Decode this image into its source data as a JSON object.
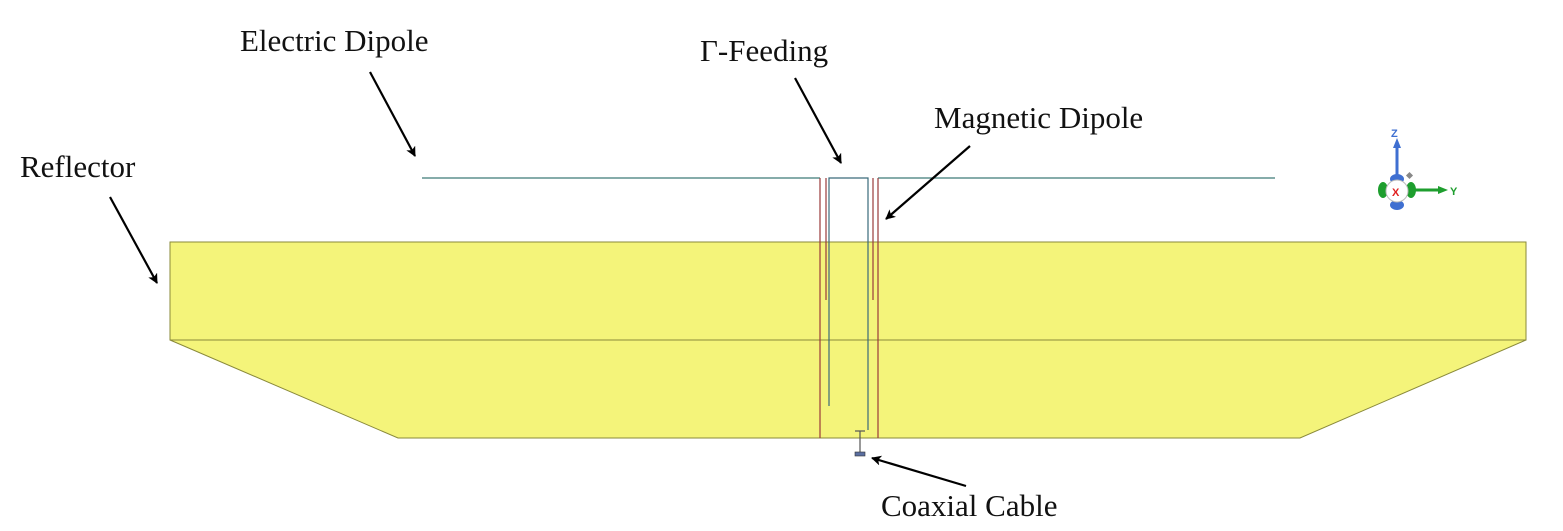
{
  "labels": {
    "electric_dipole": "Electric Dipole",
    "gamma_feeding": "Γ-Feeding",
    "magnetic_dipole": "Magnetic Dipole",
    "reflector": "Reflector",
    "coaxial_cable": "Coaxial Cable"
  },
  "triad": {
    "z": "Z",
    "x": "X",
    "y": "Y"
  },
  "colors": {
    "reflector_fill": "#f4f47a",
    "reflector_edge": "#8a8a3a",
    "dipole_line": "#3f7a78",
    "magnetic_line": "#9a3a3a",
    "feed_line": "#3a6a7a",
    "axis_z": "#3f6fd1",
    "axis_x": "#e02020",
    "axis_y": "#1e9e2e"
  }
}
